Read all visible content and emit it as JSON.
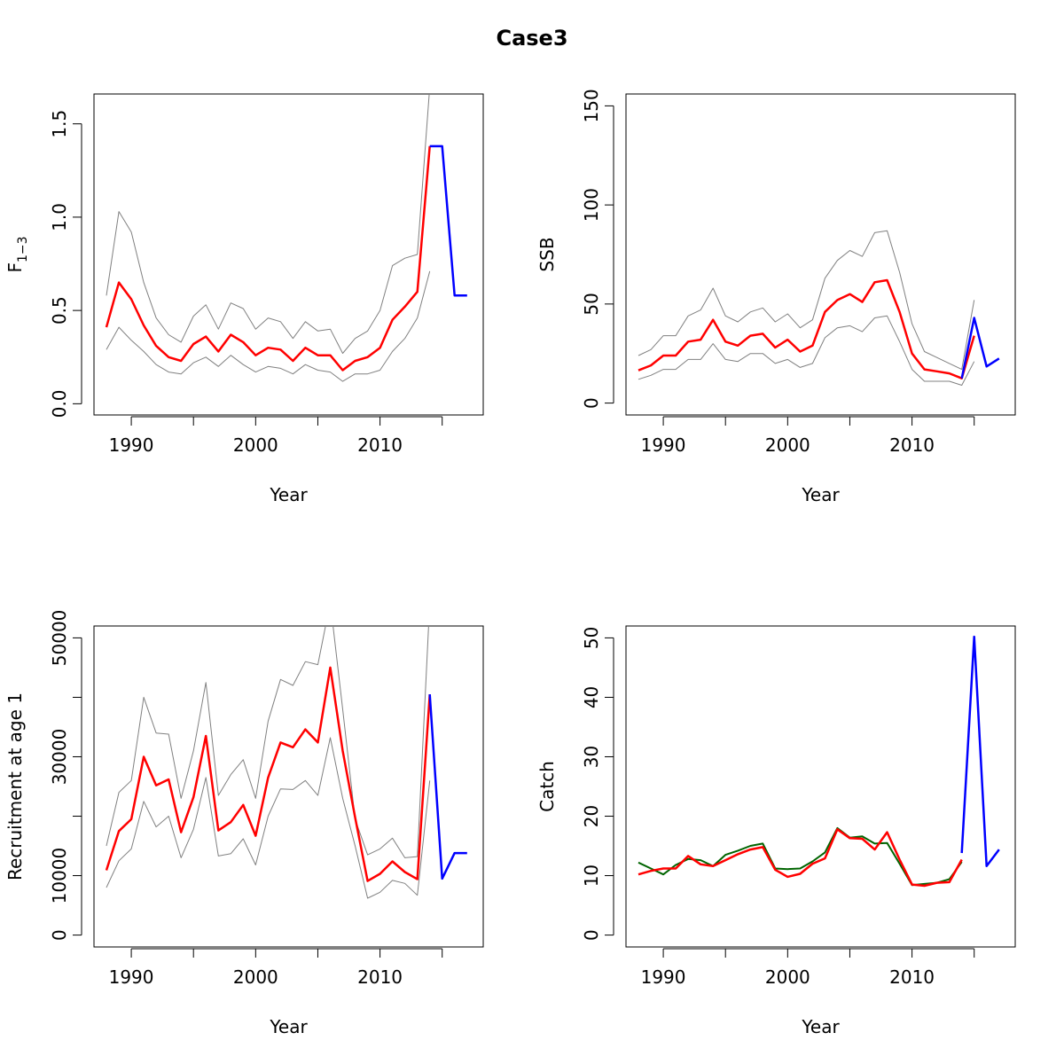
{
  "title": "Case3",
  "colors": {
    "estimate": "#ff0000",
    "ci": "#808080",
    "projection": "#0000ff",
    "observed": "#006400"
  },
  "chart_data": [
    {
      "id": "F",
      "type": "line",
      "xlabel": "Year",
      "ylabel_main": "F",
      "ylabel_sub": "1−3",
      "xlim": [
        1987,
        2018.3
      ],
      "ylim": [
        -0.06,
        1.66
      ],
      "xticks": [
        1990,
        1995,
        2000,
        2005,
        2010,
        2015
      ],
      "xtick_labels": [
        "1990",
        "",
        "2000",
        "",
        "2010",
        ""
      ],
      "yticks": [
        0,
        0.5,
        1,
        1.5
      ],
      "ytick_labels": [
        "0.0",
        "0.5",
        "1.0",
        "1.5"
      ],
      "series": [
        {
          "role": "ci",
          "x": [
            1988,
            1989,
            1990,
            1991,
            1992,
            1993,
            1994,
            1995,
            1996,
            1997,
            1998,
            1999,
            2000,
            2001,
            2002,
            2003,
            2004,
            2005,
            2006,
            2007,
            2008,
            2009,
            2010,
            2011,
            2012,
            2013,
            2014
          ],
          "y": [
            0.58,
            1.03,
            0.92,
            0.65,
            0.46,
            0.37,
            0.33,
            0.47,
            0.53,
            0.4,
            0.54,
            0.51,
            0.4,
            0.46,
            0.44,
            0.35,
            0.44,
            0.39,
            0.4,
            0.27,
            0.35,
            0.39,
            0.5,
            0.74,
            0.78,
            0.8,
            1.7
          ]
        },
        {
          "role": "ci",
          "x": [
            1988,
            1989,
            1990,
            1991,
            1992,
            1993,
            1994,
            1995,
            1996,
            1997,
            1998,
            1999,
            2000,
            2001,
            2002,
            2003,
            2004,
            2005,
            2006,
            2007,
            2008,
            2009,
            2010,
            2011,
            2012,
            2013,
            2014
          ],
          "y": [
            0.29,
            0.41,
            0.34,
            0.28,
            0.21,
            0.17,
            0.16,
            0.22,
            0.25,
            0.2,
            0.26,
            0.21,
            0.17,
            0.2,
            0.19,
            0.16,
            0.21,
            0.18,
            0.17,
            0.12,
            0.16,
            0.16,
            0.18,
            0.28,
            0.35,
            0.46,
            0.71
          ]
        },
        {
          "role": "estimate",
          "x": [
            1988,
            1989,
            1990,
            1991,
            1992,
            1993,
            1994,
            1995,
            1996,
            1997,
            1998,
            1999,
            2000,
            2001,
            2002,
            2003,
            2004,
            2005,
            2006,
            2007,
            2008,
            2009,
            2010,
            2011,
            2012,
            2013,
            2014
          ],
          "y": [
            0.41,
            0.65,
            0.56,
            0.42,
            0.31,
            0.25,
            0.23,
            0.32,
            0.36,
            0.28,
            0.37,
            0.33,
            0.26,
            0.3,
            0.29,
            0.23,
            0.3,
            0.26,
            0.26,
            0.18,
            0.23,
            0.25,
            0.3,
            0.45,
            0.52,
            0.6,
            1.38
          ]
        },
        {
          "role": "projection",
          "x": [
            2014,
            2015,
            2016,
            2017
          ],
          "y": [
            1.38,
            1.38,
            0.58,
            0.58
          ]
        }
      ]
    },
    {
      "id": "SSB",
      "type": "line",
      "xlabel": "Year",
      "ylabel_main": "SSB",
      "ylabel_sub": "",
      "xlim": [
        1987,
        2018.3
      ],
      "ylim": [
        -6,
        156
      ],
      "xticks": [
        1990,
        1995,
        2000,
        2005,
        2010,
        2015
      ],
      "xtick_labels": [
        "1990",
        "",
        "2000",
        "",
        "2010",
        ""
      ],
      "yticks": [
        0,
        50,
        100,
        150
      ],
      "ytick_labels": [
        "0",
        "50",
        "100",
        "150"
      ],
      "series": [
        {
          "role": "ci",
          "x": [
            1988,
            1989,
            1990,
            1991,
            1992,
            1993,
            1994,
            1995,
            1996,
            1997,
            1998,
            1999,
            2000,
            2001,
            2002,
            2003,
            2004,
            2005,
            2006,
            2007,
            2008,
            2009,
            2010,
            2011,
            2012,
            2013,
            2014,
            2015
          ],
          "y": [
            24,
            27,
            34,
            34,
            44,
            47,
            58,
            44,
            41,
            46,
            48,
            41,
            45,
            38,
            42,
            63,
            72,
            77,
            74,
            86,
            87,
            66,
            40,
            26,
            23,
            20,
            17,
            52
          ]
        },
        {
          "role": "ci",
          "x": [
            1988,
            1989,
            1990,
            1991,
            1992,
            1993,
            1994,
            1995,
            1996,
            1997,
            1998,
            1999,
            2000,
            2001,
            2002,
            2003,
            2004,
            2005,
            2006,
            2007,
            2008,
            2009,
            2010,
            2011,
            2012,
            2013,
            2014,
            2015
          ],
          "y": [
            12,
            14,
            17,
            17,
            22,
            22,
            30,
            22,
            21,
            25,
            25,
            20,
            22,
            18,
            20,
            33,
            38,
            39,
            36,
            43,
            44,
            31,
            17,
            11,
            11,
            11,
            9,
            21
          ]
        },
        {
          "role": "estimate",
          "x": [
            1988,
            1989,
            1990,
            1991,
            1992,
            1993,
            1994,
            1995,
            1996,
            1997,
            1998,
            1999,
            2000,
            2001,
            2002,
            2003,
            2004,
            2005,
            2006,
            2007,
            2008,
            2009,
            2010,
            2011,
            2012,
            2013,
            2014,
            2015
          ],
          "y": [
            16.5,
            19,
            24,
            24,
            31,
            32,
            42,
            31,
            29,
            34,
            35,
            28,
            32,
            26,
            29,
            46,
            52,
            55,
            51,
            61,
            62,
            46,
            25,
            17,
            16,
            15,
            12.5,
            34
          ]
        },
        {
          "role": "projection",
          "x": [
            2014,
            2015,
            2016,
            2017
          ],
          "y": [
            12.5,
            43,
            18.5,
            22.5
          ]
        }
      ]
    },
    {
      "id": "Recruitment",
      "type": "line",
      "xlabel": "Year",
      "ylabel_main": "Recruitment at age 1",
      "ylabel_sub": "",
      "xlim": [
        1987,
        2018.3
      ],
      "ylim": [
        -2000,
        52000
      ],
      "xticks": [
        1990,
        1995,
        2000,
        2005,
        2010,
        2015
      ],
      "xtick_labels": [
        "1990",
        "",
        "2000",
        "",
        "2010",
        ""
      ],
      "yticks": [
        0,
        10000,
        20000,
        30000,
        40000,
        50000
      ],
      "ytick_labels": [
        "0",
        "10000",
        "",
        "30000",
        "",
        "50000"
      ],
      "series": [
        {
          "role": "ci",
          "x": [
            1988,
            1989,
            1990,
            1991,
            1992,
            1993,
            1994,
            1995,
            1996,
            1997,
            1998,
            1999,
            2000,
            2001,
            2002,
            2003,
            2004,
            2005,
            2006,
            2007,
            2008,
            2009,
            2010,
            2011,
            2012,
            2013,
            2014
          ],
          "y": [
            15000,
            24000,
            26000,
            40000,
            34000,
            33800,
            23000,
            31000,
            42500,
            23500,
            27000,
            29500,
            23000,
            36000,
            43000,
            42000,
            46000,
            45500,
            56000,
            38000,
            19500,
            13500,
            14500,
            16300,
            13000,
            13200,
            56000
          ]
        },
        {
          "role": "ci",
          "x": [
            1988,
            1989,
            1990,
            1991,
            1992,
            1993,
            1994,
            1995,
            1996,
            1997,
            1998,
            1999,
            2000,
            2001,
            2002,
            2003,
            2004,
            2005,
            2006,
            2007,
            2008,
            2009,
            2010,
            2011,
            2012,
            2013,
            2014
          ],
          "y": [
            8000,
            12500,
            14500,
            22500,
            18200,
            20000,
            13000,
            17800,
            26500,
            13300,
            13700,
            16200,
            11800,
            20000,
            24600,
            24500,
            26000,
            23500,
            33200,
            23000,
            15000,
            6200,
            7200,
            9200,
            8700,
            6700,
            26000
          ]
        },
        {
          "role": "estimate",
          "x": [
            1988,
            1989,
            1990,
            1991,
            1992,
            1993,
            1994,
            1995,
            1996,
            1997,
            1998,
            1999,
            2000,
            2001,
            2002,
            2003,
            2004,
            2005,
            2006,
            2007,
            2008,
            2009,
            2010,
            2011,
            2012,
            2013,
            2014
          ],
          "y": [
            10900,
            17500,
            19500,
            30000,
            25200,
            26200,
            17300,
            23200,
            33500,
            17600,
            19000,
            21900,
            16700,
            26500,
            32400,
            31600,
            34600,
            32400,
            45000,
            31000,
            19800,
            9100,
            10300,
            12400,
            10600,
            9400,
            40500
          ]
        },
        {
          "role": "projection",
          "x": [
            2014,
            2015,
            2016,
            2017
          ],
          "y": [
            40500,
            9500,
            13800,
            13800
          ]
        }
      ]
    },
    {
      "id": "Catch",
      "type": "line",
      "xlabel": "Year",
      "ylabel_main": "Catch",
      "ylabel_sub": "",
      "xlim": [
        1987,
        2018.3
      ],
      "ylim": [
        -2,
        52
      ],
      "xticks": [
        1990,
        1995,
        2000,
        2005,
        2010,
        2015
      ],
      "xtick_labels": [
        "1990",
        "",
        "2000",
        "",
        "2010",
        ""
      ],
      "yticks": [
        0,
        10,
        20,
        30,
        40,
        50
      ],
      "ytick_labels": [
        "0",
        "10",
        "20",
        "30",
        "40",
        "50"
      ],
      "series": [
        {
          "role": "observed",
          "x": [
            1988,
            1989,
            1990,
            1991,
            1992,
            1993,
            1994,
            1995,
            1996,
            1997,
            1998,
            1999,
            2000,
            2001,
            2002,
            2003,
            2004,
            2005,
            2006,
            2007,
            2008,
            2009,
            2010,
            2011,
            2012,
            2013,
            2014
          ],
          "y": [
            12.2,
            11.2,
            10.2,
            11.8,
            12.8,
            12.6,
            11.6,
            13.5,
            14.2,
            15.0,
            15.4,
            11.2,
            11.1,
            11.2,
            12.4,
            13.9,
            18.0,
            16.4,
            16.6,
            15.4,
            15.5,
            12.0,
            8.4,
            8.6,
            8.8,
            9.4,
            12.3
          ]
        },
        {
          "role": "estimate",
          "x": [
            1988,
            1989,
            1990,
            1991,
            1992,
            1993,
            1994,
            1995,
            1996,
            1997,
            1998,
            1999,
            2000,
            2001,
            2002,
            2003,
            2004,
            2005,
            2006,
            2007,
            2008,
            2009,
            2010,
            2011,
            2012,
            2013,
            2014
          ],
          "y": [
            10.2,
            10.8,
            11.2,
            11.2,
            13.3,
            11.9,
            11.6,
            12.6,
            13.6,
            14.4,
            14.8,
            11.0,
            9.8,
            10.3,
            12.0,
            12.9,
            17.8,
            16.3,
            16.2,
            14.4,
            17.3,
            12.7,
            8.5,
            8.3,
            8.8,
            8.9,
            12.7
          ]
        },
        {
          "role": "projection",
          "x": [
            2014,
            2015,
            2016,
            2017
          ],
          "y": [
            13.8,
            50.2,
            11.6,
            14.4
          ]
        }
      ]
    }
  ]
}
